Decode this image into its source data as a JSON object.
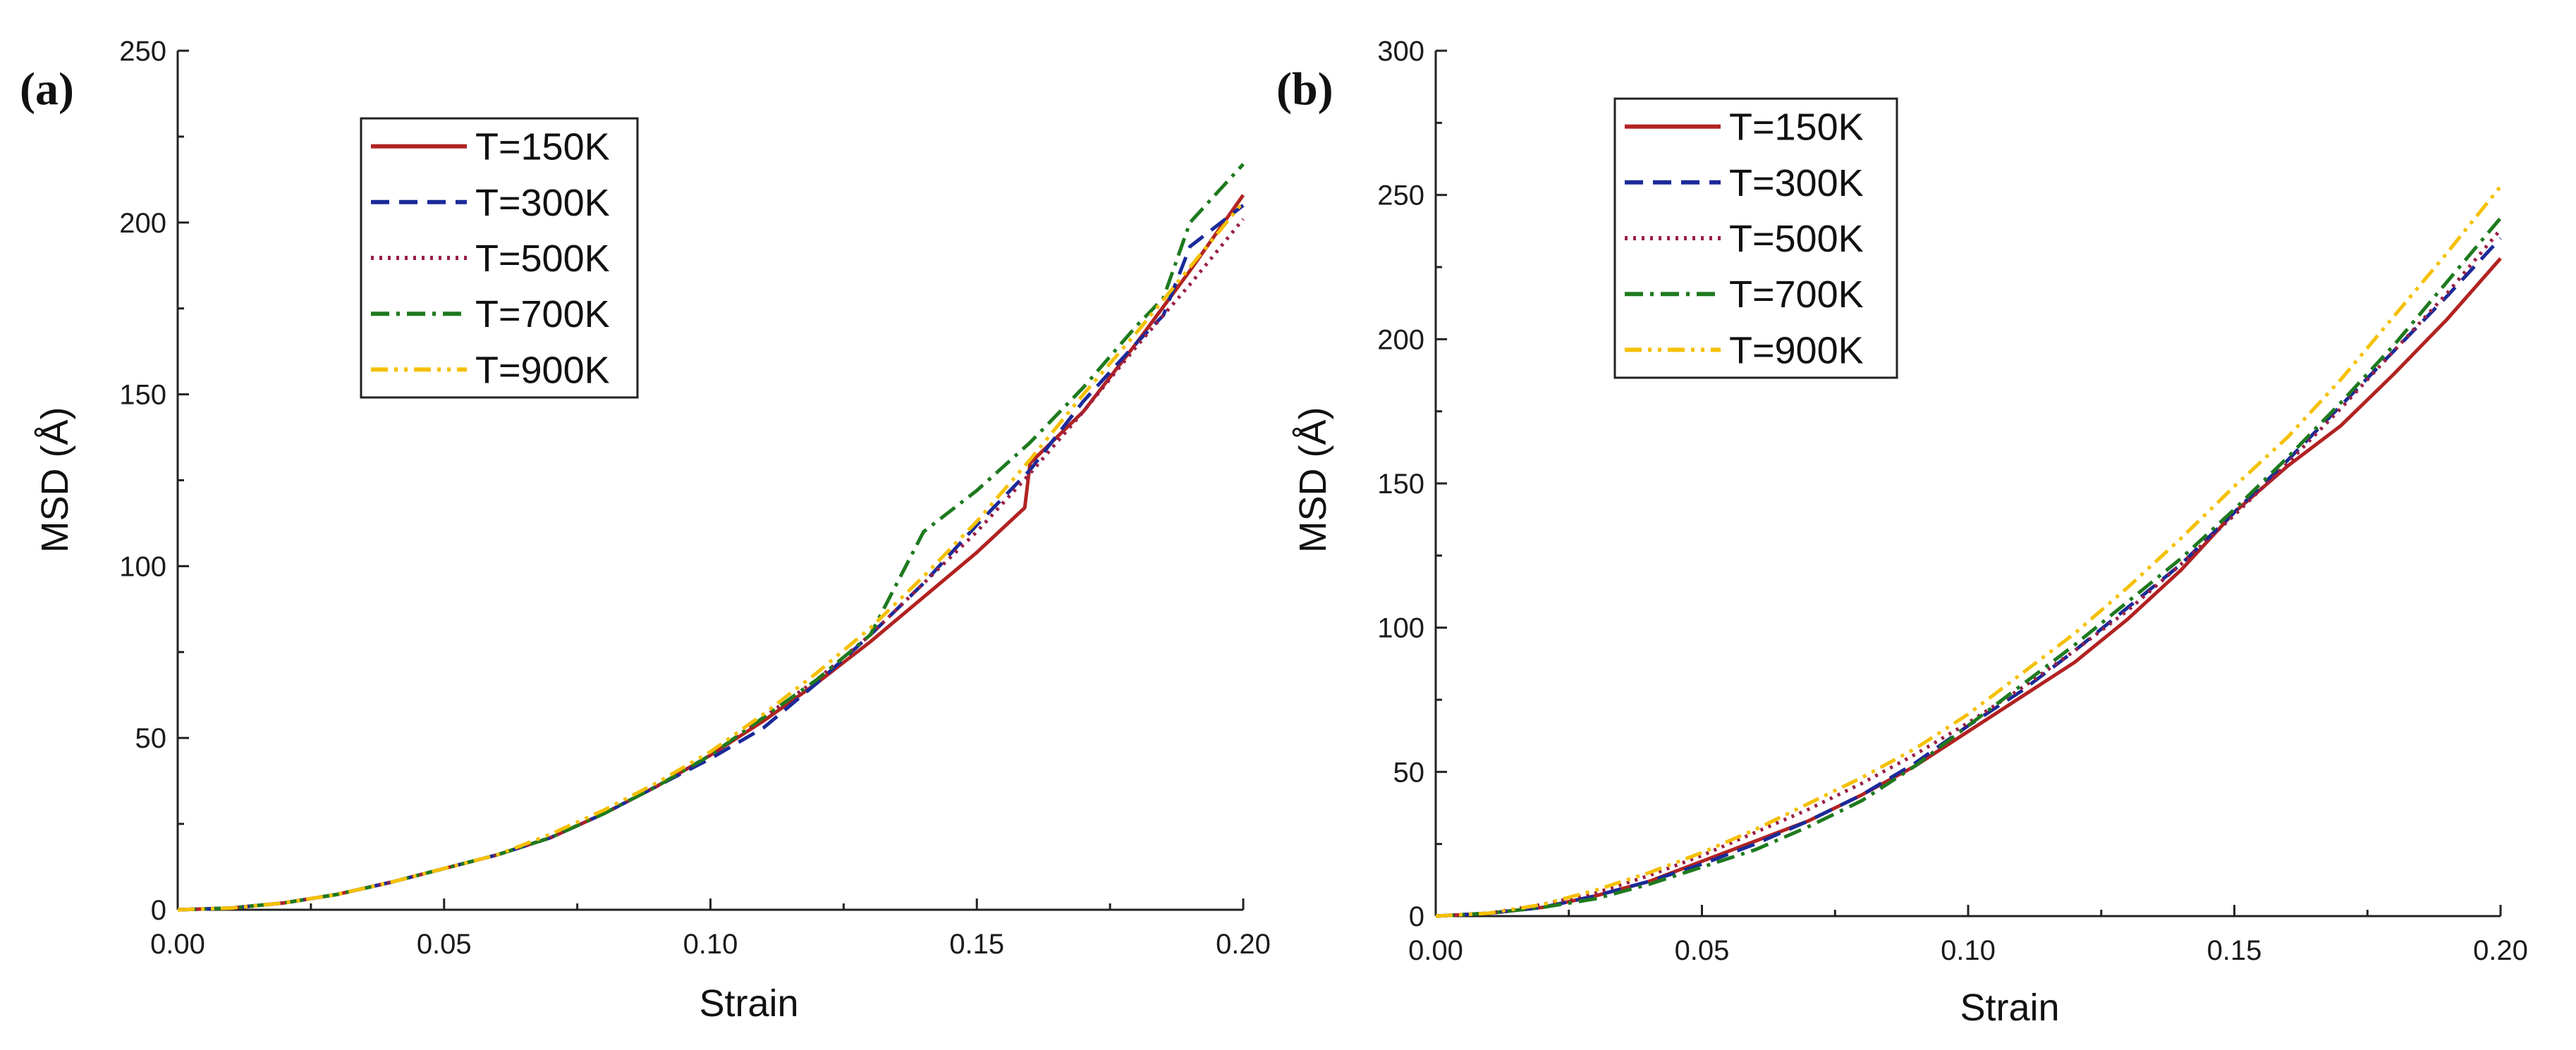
{
  "chart_data": [
    {
      "type": "line",
      "panel_label": "(a)",
      "xlabel": "Strain",
      "ylabel": "MSD (Å)",
      "xlim": [
        0,
        0.2
      ],
      "ylim": [
        0,
        250
      ],
      "xticks": [
        "0.00",
        "0.05",
        "0.10",
        "0.15",
        "0.20"
      ],
      "yticks": [
        "0",
        "50",
        "100",
        "150",
        "200",
        "250"
      ],
      "legend_position": "top-left",
      "series": [
        {
          "name": "T=150K",
          "color": "#b22222",
          "dash": "solid",
          "x": [
            0,
            0.01,
            0.02,
            0.03,
            0.04,
            0.05,
            0.06,
            0.07,
            0.08,
            0.09,
            0.1,
            0.11,
            0.12,
            0.13,
            0.14,
            0.15,
            0.159,
            0.16,
            0.17,
            0.18,
            0.19,
            0.2
          ],
          "y": [
            0,
            0.5,
            2,
            4.5,
            8,
            12,
            16,
            21,
            28,
            36,
            45,
            55,
            66,
            78,
            91,
            104,
            117,
            130,
            145,
            165,
            186,
            208
          ]
        },
        {
          "name": "T=300K",
          "color": "#1a2a99",
          "dash": "dashed",
          "x": [
            0,
            0.01,
            0.02,
            0.03,
            0.04,
            0.05,
            0.06,
            0.07,
            0.08,
            0.09,
            0.1,
            0.11,
            0.12,
            0.13,
            0.14,
            0.15,
            0.16,
            0.17,
            0.18,
            0.185,
            0.19,
            0.2
          ],
          "y": [
            0,
            0.5,
            2,
            4.5,
            8,
            12,
            16,
            21,
            28,
            36,
            44,
            53,
            66,
            80,
            95,
            112,
            128,
            148,
            165,
            173,
            193,
            205
          ]
        },
        {
          "name": "T=500K",
          "color": "#9a1f45",
          "dash": "dotted",
          "x": [
            0,
            0.01,
            0.02,
            0.03,
            0.04,
            0.05,
            0.06,
            0.07,
            0.08,
            0.09,
            0.1,
            0.11,
            0.12,
            0.13,
            0.14,
            0.15,
            0.16,
            0.17,
            0.18,
            0.19,
            0.2
          ],
          "y": [
            0,
            0.5,
            2,
            4.5,
            8,
            12,
            16,
            21,
            28,
            36,
            45,
            56,
            67,
            80,
            95,
            110,
            127,
            145,
            164,
            182,
            201
          ]
        },
        {
          "name": "T=700K",
          "color": "#1e7a1e",
          "dash": "dashdot",
          "x": [
            0,
            0.01,
            0.02,
            0.03,
            0.04,
            0.05,
            0.06,
            0.07,
            0.08,
            0.09,
            0.1,
            0.11,
            0.12,
            0.13,
            0.135,
            0.14,
            0.15,
            0.16,
            0.17,
            0.18,
            0.185,
            0.19,
            0.2
          ],
          "y": [
            0,
            0.5,
            2,
            4.5,
            8,
            12,
            16,
            21,
            28,
            36,
            45,
            56,
            67,
            80,
            95,
            110,
            122,
            136,
            152,
            170,
            178,
            200,
            217
          ]
        },
        {
          "name": "T=900K",
          "color": "#f5c000",
          "dash": "dashdotdot",
          "x": [
            0,
            0.01,
            0.02,
            0.03,
            0.04,
            0.05,
            0.06,
            0.07,
            0.08,
            0.09,
            0.1,
            0.11,
            0.12,
            0.13,
            0.14,
            0.15,
            0.16,
            0.17,
            0.18,
            0.19,
            0.2
          ],
          "y": [
            0,
            0.5,
            2,
            4.5,
            8,
            12,
            16,
            22,
            29,
            37,
            46,
            57,
            69,
            82,
            97,
            113,
            131,
            150,
            168,
            187,
            206
          ]
        }
      ]
    },
    {
      "type": "line",
      "panel_label": "(b)",
      "xlabel": "Strain",
      "ylabel": "MSD (Å)",
      "xlim": [
        0,
        0.2
      ],
      "ylim": [
        0,
        300
      ],
      "xticks": [
        "0.00",
        "0.05",
        "0.10",
        "0.15",
        "0.20"
      ],
      "yticks": [
        "0",
        "50",
        "100",
        "150",
        "200",
        "250",
        "300"
      ],
      "legend_position": "top-left",
      "series": [
        {
          "name": "T=150K",
          "color": "#b22222",
          "dash": "solid",
          "x": [
            0,
            0.01,
            0.02,
            0.03,
            0.04,
            0.05,
            0.06,
            0.07,
            0.08,
            0.09,
            0.1,
            0.11,
            0.12,
            0.13,
            0.14,
            0.15,
            0.16,
            0.17,
            0.18,
            0.19,
            0.2
          ],
          "y": [
            0,
            1,
            3,
            7,
            12,
            19,
            26,
            33,
            42,
            52,
            64,
            76,
            88,
            103,
            120,
            140,
            156,
            170,
            188,
            207,
            228
          ]
        },
        {
          "name": "T=300K",
          "color": "#1a2a99",
          "dash": "dashed",
          "x": [
            0,
            0.01,
            0.02,
            0.03,
            0.04,
            0.05,
            0.06,
            0.07,
            0.08,
            0.09,
            0.1,
            0.11,
            0.12,
            0.13,
            0.14,
            0.15,
            0.16,
            0.17,
            0.18,
            0.19,
            0.2
          ],
          "y": [
            0,
            1,
            3,
            7,
            12,
            18,
            25,
            33,
            42,
            53,
            66,
            78,
            92,
            107,
            122,
            140,
            158,
            177,
            196,
            215,
            235
          ]
        },
        {
          "name": "T=500K",
          "color": "#9a1f45",
          "dash": "dotted",
          "x": [
            0,
            0.01,
            0.02,
            0.03,
            0.04,
            0.05,
            0.06,
            0.07,
            0.08,
            0.09,
            0.1,
            0.11,
            0.12,
            0.13,
            0.14,
            0.15,
            0.16,
            0.17,
            0.18,
            0.19,
            0.2
          ],
          "y": [
            0,
            1,
            4,
            8,
            14,
            21,
            29,
            37,
            46,
            56,
            67,
            79,
            92,
            106,
            122,
            139,
            157,
            176,
            196,
            216,
            238
          ]
        },
        {
          "name": "T=700K",
          "color": "#1e7a1e",
          "dash": "dashdot",
          "x": [
            0,
            0.01,
            0.02,
            0.03,
            0.04,
            0.05,
            0.06,
            0.07,
            0.08,
            0.09,
            0.1,
            0.11,
            0.12,
            0.13,
            0.14,
            0.15,
            0.16,
            0.17,
            0.18,
            0.19,
            0.2
          ],
          "y": [
            0,
            1,
            3,
            6,
            11,
            17,
            23,
            31,
            40,
            52,
            66,
            80,
            94,
            109,
            124,
            141,
            159,
            178,
            198,
            220,
            242
          ]
        },
        {
          "name": "T=900K",
          "color": "#f5c000",
          "dash": "dashdotdot",
          "x": [
            0,
            0.01,
            0.02,
            0.03,
            0.04,
            0.05,
            0.06,
            0.07,
            0.08,
            0.09,
            0.1,
            0.11,
            0.12,
            0.13,
            0.14,
            0.15,
            0.16,
            0.17,
            0.18,
            0.19,
            0.2
          ],
          "y": [
            0,
            1,
            4,
            9,
            15,
            22,
            30,
            39,
            48,
            58,
            70,
            84,
            98,
            114,
            131,
            149,
            166,
            186,
            208,
            230,
            253
          ]
        }
      ]
    }
  ]
}
